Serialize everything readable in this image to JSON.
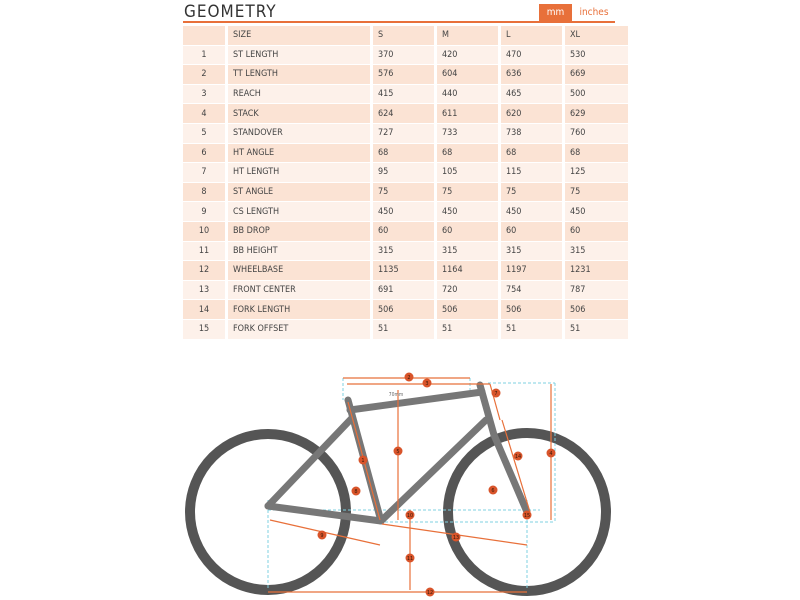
{
  "header": {
    "title": "GEOMETRY",
    "units": [
      "mm",
      "inches"
    ]
  },
  "table": {
    "header": [
      "SIZE",
      "S",
      "M",
      "L",
      "XL"
    ],
    "rows": [
      [
        1,
        "ST LENGTH",
        370,
        420,
        470,
        530
      ],
      [
        2,
        "TT LENGTH",
        576,
        604,
        636,
        669
      ],
      [
        3,
        "REACH",
        415,
        440,
        465,
        500
      ],
      [
        4,
        "STACK",
        624,
        611,
        620,
        629
      ],
      [
        5,
        "STANDOVER",
        727,
        733,
        738,
        760
      ],
      [
        6,
        "HT ANGLE",
        68,
        68,
        68,
        68
      ],
      [
        7,
        "HT LENGTH",
        95,
        105,
        115,
        125
      ],
      [
        8,
        "ST ANGLE",
        75,
        75,
        75,
        75
      ],
      [
        9,
        "CS LENGTH",
        450,
        450,
        450,
        450
      ],
      [
        10,
        "BB DROP",
        60,
        60,
        60,
        60
      ],
      [
        11,
        "BB HEIGHT",
        315,
        315,
        315,
        315
      ],
      [
        12,
        "WHEELBASE",
        1135,
        1164,
        1197,
        1231
      ],
      [
        13,
        "FRONT CENTER",
        691,
        720,
        754,
        787
      ],
      [
        14,
        "FORK LENGTH",
        506,
        506,
        506,
        506
      ],
      [
        15,
        "FORK OFFSET",
        51,
        51,
        51,
        51
      ]
    ]
  },
  "diagram": {
    "labels": [
      "1",
      "2",
      "3",
      "4",
      "5",
      "6",
      "7",
      "8",
      "9",
      "10",
      "11",
      "12",
      "13",
      "14",
      "15"
    ],
    "note": "70mm"
  }
}
